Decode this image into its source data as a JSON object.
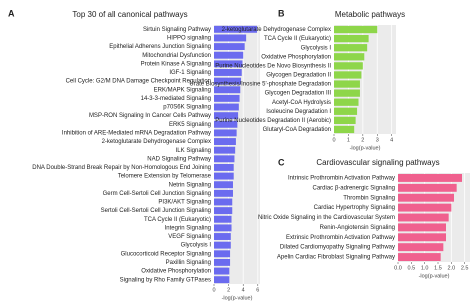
{
  "chart_data": [
    {
      "type": "bar",
      "orientation": "horizontal",
      "panel_label": "A",
      "title": "Top 30 of all canonical pathways",
      "x_label": "-log(p-value)",
      "color": "#6b6bef",
      "grid": true,
      "categories": [
        "Sirtuin Signaling Pathway",
        "HIPPO signaling",
        "Epithelial Adherens Junction Signaling",
        "Mitochondrial Dysfunction",
        "Protein Kinase A Signaling",
        "IGF-1 Signaling",
        "Cell Cycle: G2/M DNA Damage Checkpoint Regulation",
        "ERK/MAPK Signaling",
        "14-3-3-mediated Signaling",
        "p70S6K Signaling",
        "MSP-RON Signaling In Cancer Cells Pathway",
        "ERK5 Signaling",
        "Inhibition of ARE-Mediated mRNA Degradation Pathway",
        "2-ketoglutarate Dehydrogenase Complex",
        "ILK Signaling",
        "NAD Signaling Pathway",
        "DNA Double-Strand Break Repair by Non-Homologous End Joining",
        "Telomere Extension by Telomerase",
        "Netrin Signaling",
        "Germ Cell-Sertoli Cell Junction Signaling",
        "PI3K/AKT Signaling",
        "Sertoli Cell-Sertoli Cell Junction Signaling",
        "TCA Cycle II (Eukaryotic)",
        "Integrin Signaling",
        "VEGF Signaling",
        "Glycolysis I",
        "Glucocorticoid Receptor Signaling",
        "Paxillin Signaling",
        "Oxidative Phosphorylation",
        "Signaling by Rho Family GTPases"
      ],
      "values": [
        5.9,
        4.4,
        4.2,
        4.0,
        3.9,
        3.8,
        3.7,
        3.6,
        3.5,
        3.4,
        3.3,
        3.2,
        3.1,
        3.0,
        2.9,
        2.8,
        2.7,
        2.7,
        2.6,
        2.6,
        2.5,
        2.5,
        2.4,
        2.4,
        2.3,
        2.3,
        2.2,
        2.2,
        2.1,
        2.1
      ],
      "xlim": [
        0,
        6.3
      ],
      "xticks": [
        0,
        2,
        4,
        6
      ]
    },
    {
      "type": "bar",
      "orientation": "horizontal",
      "panel_label": "B",
      "title": "Metabolic pathways",
      "x_label": "-log(p-value)",
      "color": "#8ed64a",
      "grid": true,
      "categories": [
        "2-ketoglutarate Dehydrogenase Complex",
        "TCA Cycle II (Eukaryotic)",
        "Glycolysis I",
        "Oxidative Phosphorylation",
        "Purine Nucleotides De Novo Biosynthesis II",
        "Glycogen Degradation II",
        "Urate Biosynthesis/Inosine 5'-phosphate Degradation",
        "Glycogen Degradation III",
        "Acetyl-CoA Hydrolysis",
        "Isoleucine Degradation I",
        "Purine Nucleotides Degradation II (Aerobic)",
        "Glutaryl-CoA Degradation"
      ],
      "values": [
        3.0,
        2.4,
        2.3,
        2.1,
        2.0,
        1.9,
        1.8,
        1.8,
        1.7,
        1.6,
        1.5,
        1.4
      ],
      "xlim": [
        0,
        4.3
      ],
      "xticks": [
        0,
        1,
        2,
        3,
        4
      ]
    },
    {
      "type": "bar",
      "orientation": "horizontal",
      "panel_label": "C",
      "title": "Cardiovascular signaling pathways",
      "x_label": "-log(p-value)",
      "color": "#f0608e",
      "grid": true,
      "categories": [
        "Intrinsic Prothrombin Activation Pathway",
        "Cardiac β-adrenergic Signaling",
        "Thrombin Signaling",
        "Cardiac Hypertrophy Signaling",
        "Nitric Oxide Signaling in the Cardiovascular System",
        "Renin-Angiotensin Signaling",
        "Extrinsic Prothrombin Activation Pathway",
        "Dilated Cardiomyopathy Signaling Pathway",
        "Apelin Cardiac Fibroblast Signaling Pathway"
      ],
      "values": [
        2.4,
        2.2,
        2.1,
        2.0,
        1.9,
        1.8,
        1.8,
        1.7,
        1.6
      ],
      "xlim": [
        0,
        2.7
      ],
      "xticks": [
        {
          "value": 0,
          "label": "0.0"
        },
        {
          "value": 0.5,
          "label": "0.5"
        },
        {
          "value": 1,
          "label": "1.0"
        },
        {
          "value": 1.5,
          "label": "1.5"
        },
        {
          "value": 2,
          "label": "2.0"
        },
        {
          "value": 2.5,
          "label": "2.5"
        }
      ]
    }
  ]
}
